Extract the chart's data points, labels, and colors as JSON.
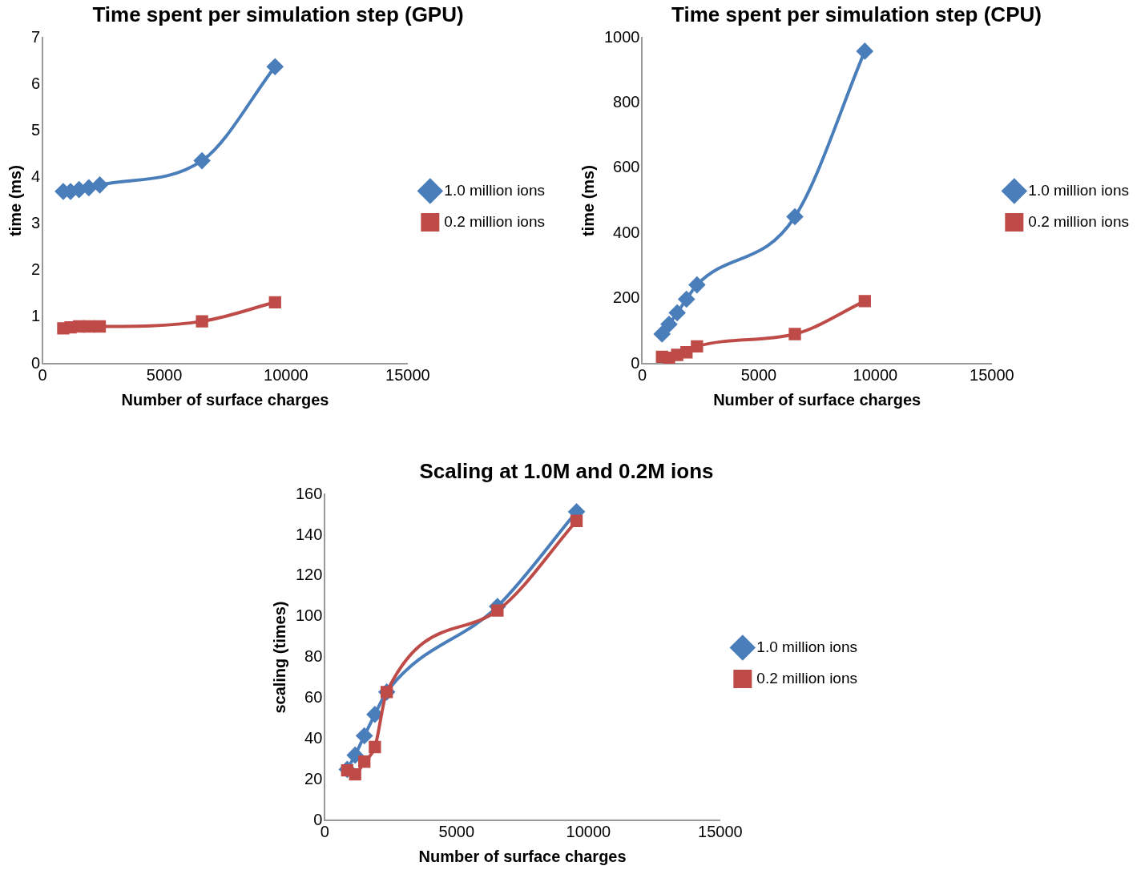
{
  "chart_data": [
    {
      "type": "line",
      "title": "Time spent per simulation step (GPU)",
      "xlabel": "Number of surface charges",
      "ylabel": "time (ms)",
      "x": [
        850,
        1150,
        1500,
        1900,
        2350,
        6550,
        9550
      ],
      "xlim": [
        0,
        15000
      ],
      "xticks": [
        0,
        5000,
        10000,
        15000
      ],
      "ylim": [
        0,
        7
      ],
      "yticks": [
        0,
        1,
        2,
        3,
        4,
        5,
        6,
        7
      ],
      "grid": false,
      "legend": "right",
      "series": [
        {
          "name": "1.0 million ions",
          "color": "#4a7ebb",
          "marker": "diamond",
          "values": [
            3.7,
            3.7,
            3.74,
            3.78,
            3.84,
            4.36,
            6.38
          ]
        },
        {
          "name": "0.2 million ions",
          "color": "#be4b48",
          "marker": "square",
          "values": [
            0.76,
            0.78,
            0.8,
            0.8,
            0.8,
            0.91,
            1.32
          ]
        }
      ]
    },
    {
      "type": "line",
      "title": "Time spent per simulation step (CPU)",
      "xlabel": "Number of surface charges",
      "ylabel": "time (ms)",
      "x": [
        850,
        1150,
        1500,
        1900,
        2350,
        6550,
        9550
      ],
      "xlim": [
        0,
        15000
      ],
      "xticks": [
        0,
        5000,
        10000,
        15000
      ],
      "ylim": [
        0,
        1000
      ],
      "yticks": [
        0,
        200,
        400,
        600,
        800,
        1000
      ],
      "grid": false,
      "legend": "right",
      "series": [
        {
          "name": "1.0 million ions",
          "color": "#4a7ebb",
          "marker": "diamond",
          "values": [
            91,
            121,
            156,
            198,
            242,
            451,
            959
          ]
        },
        {
          "name": "0.2 million ions",
          "color": "#be4b48",
          "marker": "square",
          "values": [
            21,
            18,
            27,
            35,
            53,
            91,
            192
          ]
        }
      ]
    },
    {
      "type": "line",
      "title": "Scaling at 1.0M and 0.2M ions",
      "xlabel": "Number of surface charges",
      "ylabel": "scaling (times)",
      "x": [
        850,
        1150,
        1500,
        1900,
        2350,
        6550,
        9550
      ],
      "xlim": [
        0,
        15000
      ],
      "xticks": [
        0,
        5000,
        10000,
        15000
      ],
      "ylim": [
        0,
        160
      ],
      "yticks": [
        0,
        20,
        40,
        60,
        80,
        100,
        120,
        140,
        160
      ],
      "grid": false,
      "legend": "right",
      "series": [
        {
          "name": "1.0 million ions",
          "color": "#4a7ebb",
          "marker": "diamond",
          "values": [
            25,
            32,
            41.5,
            52,
            63,
            105,
            151.5
          ]
        },
        {
          "name": "0.2 million ions",
          "color": "#be4b48",
          "marker": "square",
          "values": [
            24.5,
            22.6,
            28.8,
            36,
            63,
            103,
            147
          ]
        }
      ]
    }
  ]
}
